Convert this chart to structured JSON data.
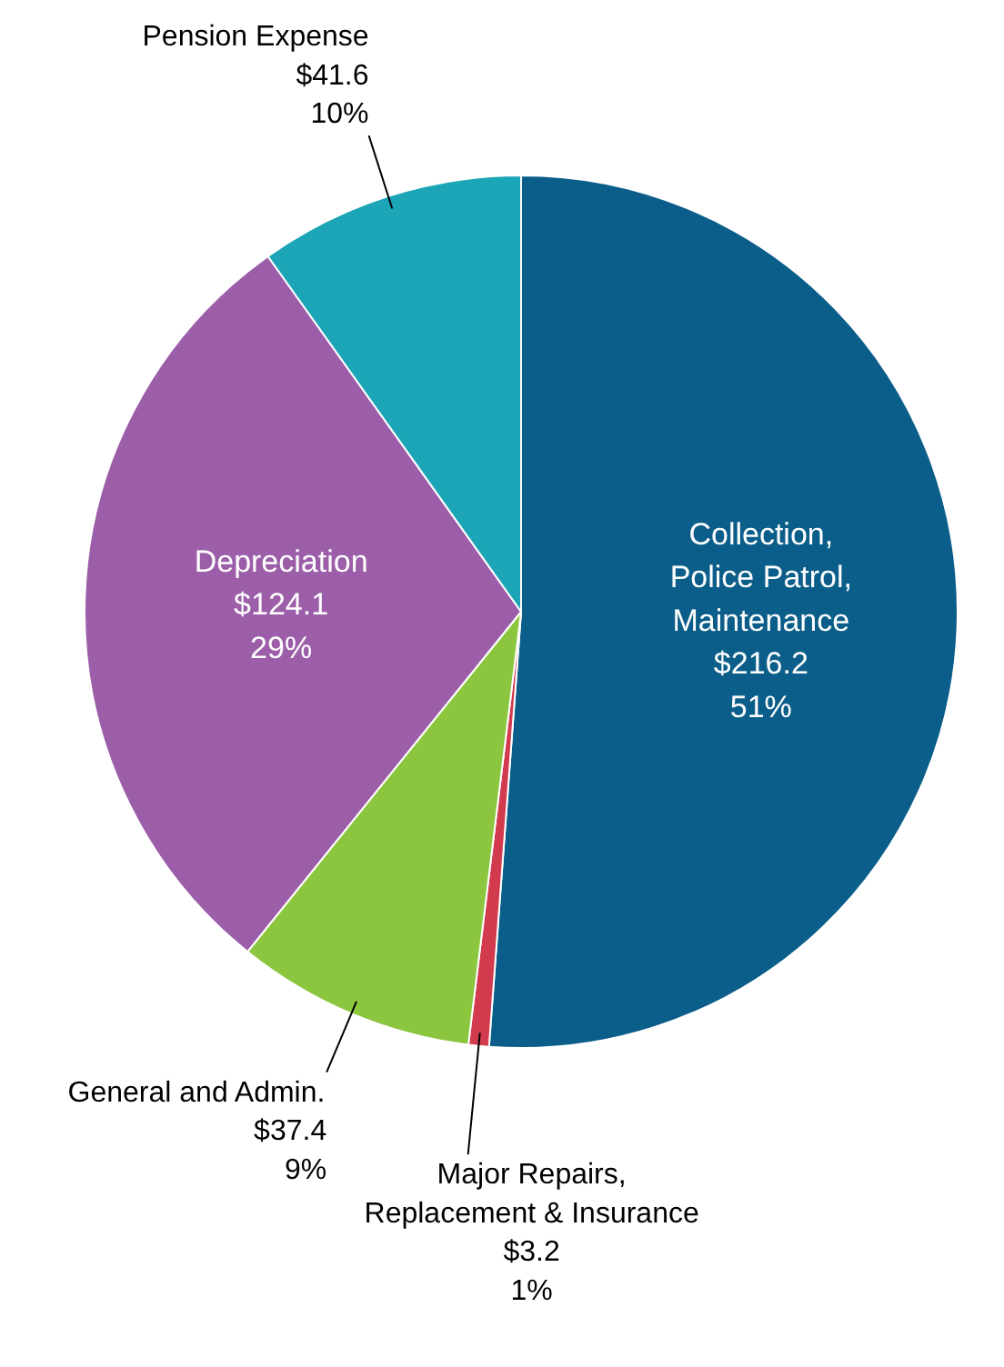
{
  "chart_data": {
    "type": "pie",
    "categories": [
      "Collection,\nPolice Patrol,\nMaintenance",
      "Major Repairs,\nReplacement & Insurance",
      "General and Admin.",
      "Depreciation",
      "Pension Expense"
    ],
    "values": [
      216.2,
      3.2,
      37.4,
      124.1,
      41.6
    ],
    "value_labels": [
      "$216.2\n51%",
      "$3.2\n1%",
      "$37.4\n9%",
      "$124.1\n29%",
      "$41.6\n10%"
    ],
    "colors": [
      "#0b5e89",
      "#d23a4e",
      "#8cc63f",
      "#9c5ea8",
      "#1ba5b6"
    ]
  }
}
